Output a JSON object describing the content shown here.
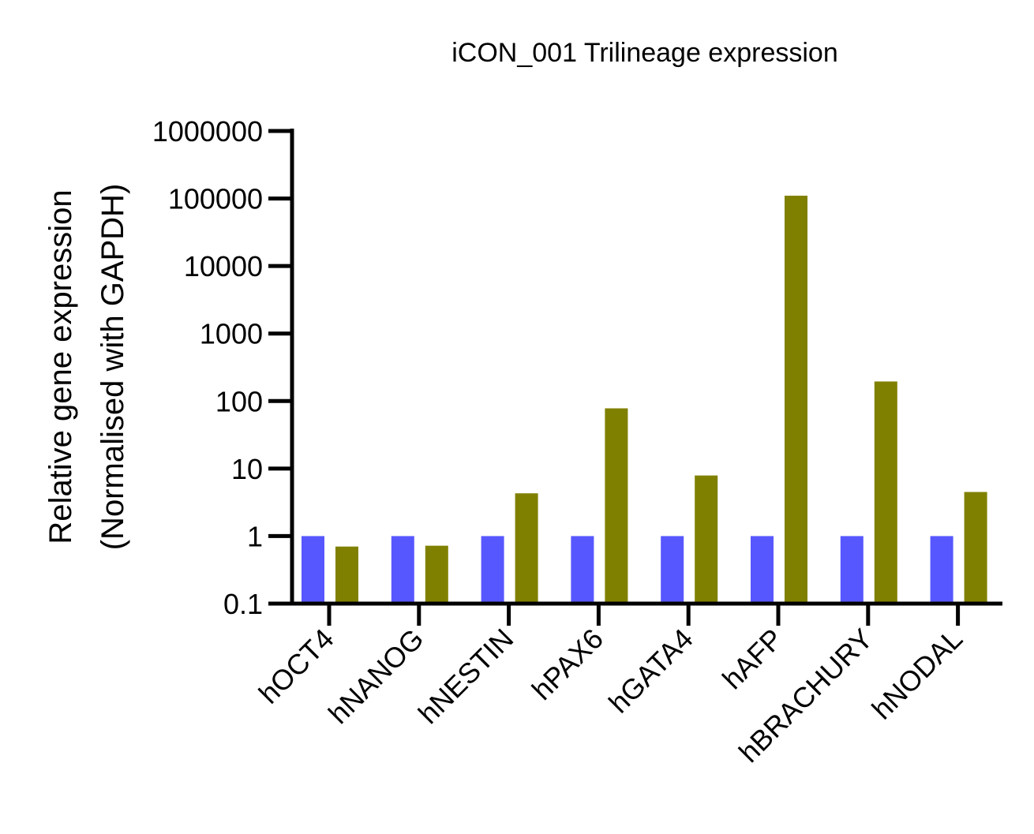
{
  "chart_data": {
    "type": "bar",
    "title": "iCON_001 Trilineage expression",
    "xlabel": "",
    "ylabel": [
      "Relative gene expression",
      "(Normalised with GAPDH)"
    ],
    "yscale": "log",
    "ylim": [
      0.1,
      1000000
    ],
    "yticks": [
      "0.1",
      "1",
      "10",
      "100",
      "1000",
      "10000",
      "100000",
      "1000000"
    ],
    "categories": [
      "hOCT4",
      "hNANOG",
      "hNESTIN",
      "hPAX6",
      "hGATA4",
      "hAFP",
      "hBRACHURY",
      "hNODAL"
    ],
    "series": [
      {
        "values": [
          1,
          1,
          1,
          1,
          1,
          1,
          1,
          1
        ],
        "color": "#5757FF"
      },
      {
        "values": [
          0.7,
          0.72,
          4.3,
          78,
          7.9,
          110000,
          195,
          4.5
        ],
        "color": "#808000"
      }
    ],
    "legend": "none",
    "grid": false
  }
}
